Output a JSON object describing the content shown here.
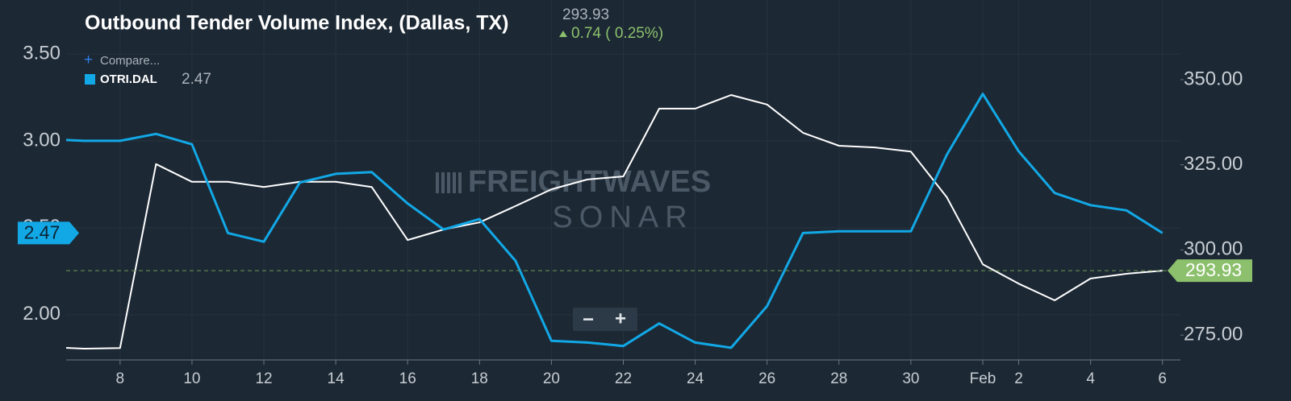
{
  "chart_data": {
    "type": "line",
    "title": "Outbound Tender Volume Index, (Dallas, TX)",
    "change": "0.74 ( 0.25%)",
    "compare": "Compare...",
    "watermark": [
      "FREIGHTWAVES",
      "SONAR"
    ],
    "zoom_controls": [
      "−",
      "+"
    ],
    "x": [
      6,
      7,
      8,
      9,
      10,
      11,
      12,
      13,
      14,
      15,
      16,
      17,
      18,
      19,
      20,
      21,
      22,
      23,
      24,
      25,
      26,
      27,
      28,
      29,
      30,
      31,
      32,
      33,
      34,
      35,
      36,
      37
    ],
    "xlim": [
      6.5,
      37.5
    ],
    "xticks": [
      8,
      10,
      12,
      14,
      16,
      18,
      20,
      22,
      24,
      26,
      28,
      30,
      {
        "value": 32,
        "label": "Feb"
      },
      {
        "value": 33,
        "label": "2"
      },
      {
        "value": 35,
        "label": "4"
      },
      {
        "value": 37,
        "label": "6"
      }
    ],
    "ylim": [
      1.74,
      3.81
    ],
    "yticks": [
      {
        "value": 2.0,
        "label": "2.00"
      },
      {
        "value": 2.5,
        "label": "2.50"
      },
      {
        "value": 3.0,
        "label": "3.00"
      },
      {
        "value": 3.5,
        "label": "3.50"
      }
    ],
    "y2lim": [
      267.7,
      373.4
    ],
    "y2ticks": [
      {
        "value": 275,
        "label": "275.00"
      },
      {
        "value": 300,
        "label": "300.00"
      },
      {
        "value": 325,
        "label": "325.00"
      },
      {
        "value": 350,
        "label": "350.00"
      }
    ],
    "grid": true,
    "series": [
      {
        "color": "#ffffff",
        "axis": "y2",
        "values": [
          271.5,
          271.0,
          271.2,
          325.2,
          320.0,
          320.0,
          318.5,
          320.0,
          320.0,
          318.5,
          302.9,
          306.0,
          308.1,
          312.9,
          317.8,
          320.7,
          321.6,
          341.5,
          341.5,
          345.5,
          342.7,
          334.4,
          330.6,
          330.1,
          328.9,
          315.5,
          295.8,
          290.1,
          285.2,
          291.6,
          293.0,
          293.93
        ]
      },
      {
        "name": "OTRI.DAL",
        "color": "#12a8e6",
        "values": [
          3.01,
          3.0,
          3.0,
          3.04,
          2.98,
          2.47,
          2.42,
          2.76,
          2.81,
          2.82,
          2.64,
          2.49,
          2.55,
          2.31,
          1.85,
          1.84,
          1.82,
          1.95,
          1.84,
          1.81,
          2.05,
          2.47,
          2.48,
          2.48,
          2.48,
          2.92,
          3.27,
          2.94,
          2.7,
          2.63,
          2.6,
          2.47
        ]
      }
    ]
  }
}
